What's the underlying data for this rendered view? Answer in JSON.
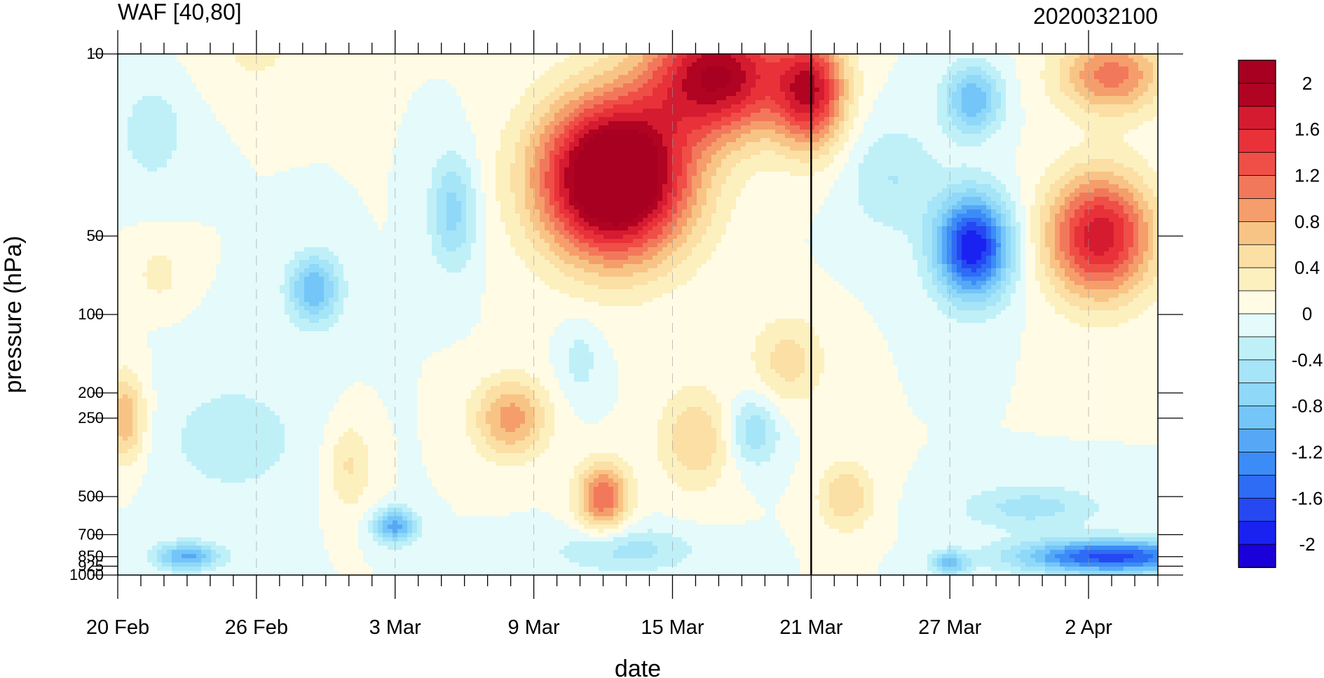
{
  "chart_data": {
    "type": "heatmap",
    "title": "WAF [40,80]",
    "subtitle": "2020032100",
    "xlabel": "date",
    "ylabel": "pressure (hPa)",
    "x_ticks": [
      {
        "label": "20 Feb",
        "day": 0
      },
      {
        "label": "26 Feb",
        "day": 6
      },
      {
        "label": "3 Mar",
        "day": 12
      },
      {
        "label": "9 Mar",
        "day": 18
      },
      {
        "label": "15 Mar",
        "day": 24
      },
      {
        "label": "21 Mar",
        "day": 30
      },
      {
        "label": "27 Mar",
        "day": 36
      },
      {
        "label": "2 Apr",
        "day": 42
      }
    ],
    "x_range_days": [
      0,
      45
    ],
    "y_scale": "log",
    "y_reversed": true,
    "y_ticks": [
      10,
      50,
      100,
      200,
      250,
      500,
      700,
      850,
      925,
      1000
    ],
    "y_tick_labels": [
      "10",
      "50",
      "100",
      "200",
      "250",
      "500",
      "700",
      "850",
      "925",
      "1000"
    ],
    "ylim": [
      1000,
      10
    ],
    "marker_day": 30,
    "colorbar": {
      "levels": [
        -2.2,
        -2.0,
        -1.8,
        -1.6,
        -1.4,
        -1.2,
        -1.0,
        -0.8,
        -0.6,
        -0.4,
        -0.2,
        0,
        0.2,
        0.4,
        0.6,
        0.8,
        1.0,
        1.2,
        1.4,
        1.6,
        1.8,
        2.0,
        2.2
      ],
      "colors": [
        "#1a00d9",
        "#1a22f2",
        "#2548f2",
        "#2e6cf5",
        "#3c8cf7",
        "#56a8f7",
        "#74c6f8",
        "#8fd8f8",
        "#a6e4f8",
        "#bff0f8",
        "#e4fafb",
        "#fffbe5",
        "#fdf0bf",
        "#fbdfa4",
        "#f8c486",
        "#f59e6b",
        "#f2785b",
        "#ef4f46",
        "#e9313a",
        "#d51b30",
        "#b10322",
        "#a80020"
      ],
      "labels": [
        {
          "text": "2",
          "value": 2.0
        },
        {
          "text": "1.6",
          "value": 1.6
        },
        {
          "text": "1.2",
          "value": 1.2
        },
        {
          "text": "0.8",
          "value": 0.8
        },
        {
          "text": "0.4",
          "value": 0.4
        },
        {
          "text": "0",
          "value": 0
        },
        {
          "text": "-0.4",
          "value": -0.4
        },
        {
          "text": "-0.8",
          "value": -0.8
        },
        {
          "text": "-1.2",
          "value": -1.2
        },
        {
          "text": "-1.6",
          "value": -1.6
        },
        {
          "text": "-2",
          "value": -2.0
        }
      ]
    },
    "features": [
      {
        "day": 21.5,
        "p": 30,
        "amp": 2.8,
        "wd": 3.2,
        "wl": 0.7
      },
      {
        "day": 26,
        "p": 12,
        "amp": 2.0,
        "wd": 3.0,
        "wl": 0.55
      },
      {
        "day": 30,
        "p": 14,
        "amp": 1.6,
        "wd": 1.5,
        "wl": 0.5
      },
      {
        "day": 42.5,
        "p": 50,
        "amp": 1.75,
        "wd": 2.3,
        "wl": 0.55
      },
      {
        "day": 43,
        "p": 12,
        "amp": 1.1,
        "wd": 2.3,
        "wl": 0.35
      },
      {
        "day": 37,
        "p": 55,
        "amp": -2.0,
        "wd": 1.6,
        "wl": 0.45
      },
      {
        "day": 37,
        "p": 15,
        "amp": -1.0,
        "wd": 1.2,
        "wl": 0.3
      },
      {
        "day": 43,
        "p": 850,
        "amp": -1.7,
        "wd": 4.0,
        "wl": 0.15
      },
      {
        "day": 39.5,
        "p": 550,
        "amp": -0.5,
        "wd": 3.0,
        "wl": 0.2
      },
      {
        "day": 8.5,
        "p": 80,
        "amp": -1.0,
        "wd": 1.1,
        "wl": 0.3
      },
      {
        "day": 3,
        "p": 850,
        "amp": -1.05,
        "wd": 1.4,
        "wl": 0.12
      },
      {
        "day": 12,
        "p": 650,
        "amp": -1.1,
        "wd": 0.9,
        "wl": 0.15
      },
      {
        "day": 36,
        "p": 900,
        "amp": -0.9,
        "wd": 0.8,
        "wl": 0.1
      },
      {
        "day": 14.5,
        "p": 40,
        "amp": -0.7,
        "wd": 1.0,
        "wl": 0.5
      },
      {
        "day": 1.5,
        "p": 20,
        "amp": -0.4,
        "wd": 1.3,
        "wl": 0.4
      },
      {
        "day": 5,
        "p": 300,
        "amp": -0.3,
        "wd": 3.5,
        "wl": 0.6
      },
      {
        "day": 22,
        "p": 800,
        "amp": -0.5,
        "wd": 3.0,
        "wl": 0.2
      },
      {
        "day": 33.5,
        "p": 30,
        "amp": -0.4,
        "wd": 2.0,
        "wl": 0.5
      },
      {
        "day": 20,
        "p": 150,
        "amp": -0.3,
        "wd": 0.9,
        "wl": 0.35
      },
      {
        "day": 17,
        "p": 250,
        "amp": 0.9,
        "wd": 1.6,
        "wl": 0.35
      },
      {
        "day": 21,
        "p": 500,
        "amp": 1.2,
        "wd": 1.1,
        "wl": 0.3
      },
      {
        "day": 25,
        "p": 300,
        "amp": 0.6,
        "wd": 1.6,
        "wl": 0.45
      },
      {
        "day": 29,
        "p": 150,
        "amp": 0.5,
        "wd": 1.6,
        "wl": 0.4
      },
      {
        "day": 31.5,
        "p": 500,
        "amp": 0.6,
        "wd": 1.2,
        "wl": 0.3
      },
      {
        "day": 10,
        "p": 380,
        "amp": 0.45,
        "wd": 1.0,
        "wl": 0.4
      },
      {
        "day": 0.3,
        "p": 250,
        "amp": 0.8,
        "wd": 0.9,
        "wl": 0.4
      },
      {
        "day": 1.8,
        "p": 70,
        "amp": 0.3,
        "wd": 1.0,
        "wl": 0.25
      },
      {
        "day": 6,
        "p": 10,
        "amp": 0.25,
        "wd": 2.0,
        "wl": 0.3
      },
      {
        "day": 27.5,
        "p": 280,
        "amp": -0.6,
        "wd": 1.1,
        "wl": 0.3
      }
    ]
  }
}
